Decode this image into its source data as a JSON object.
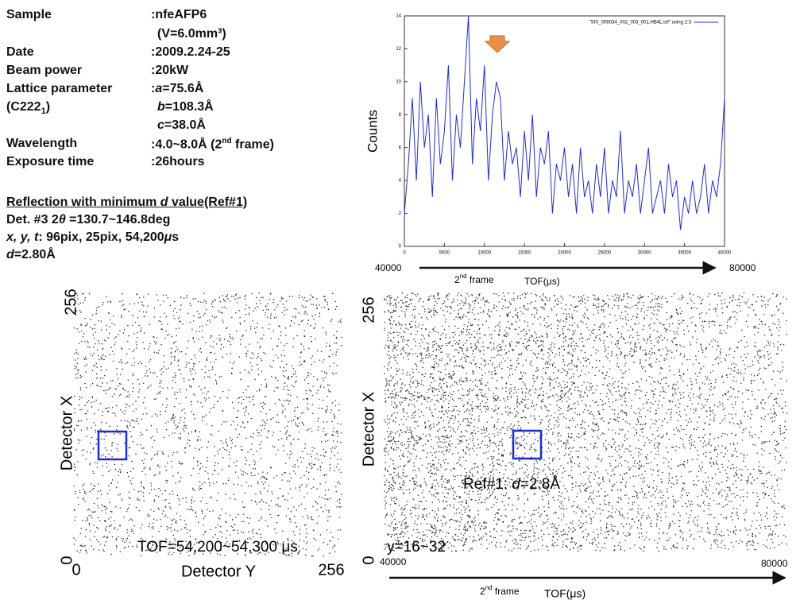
{
  "info": {
    "sample_label": "Sample",
    "sample": ":nfeAFP6",
    "volume": "(V=6.0mm³)",
    "date_label": "Date",
    "date": ":2009.2.24-25",
    "power_label": "Beam power",
    "power": ":20kW",
    "lattice_label": "Lattice parameter",
    "lattice_a_colon": ":",
    "lattice_a_sym": "a",
    "lattice_a": "=75.6Å",
    "space_group": "(C222",
    "space_group_sub": "1",
    "space_group_end": ")",
    "lattice_b_sym": "b",
    "lattice_b": "=108.3Å",
    "lattice_c_sym": "c",
    "lattice_c": "=38.0Å",
    "wavelength_label": "Wavelength",
    "wavelength": ":4.0~8.0Å (2",
    "wavelength_sup": "nd",
    "wavelength_end": " frame)",
    "exposure_label": "Exposure time",
    "exposure": ":26hours",
    "reflection_pre": "Reflection with minimum ",
    "reflection_sym": "d",
    "reflection_post": " value(Ref#1)",
    "det_pre": "Det. #3 2",
    "det_sym": "θ",
    "det_post": " =130.7~146.8deg",
    "xyt_sym": "x, y, t",
    "xyt": ": 96pix, 25pix, 54,200",
    "xyt_unit": "μ",
    "xyt_end": "s",
    "d_sym": "d",
    "d": "=2.80Å"
  },
  "chart_data": {
    "type": "line",
    "y_label": "Counts",
    "xlim": [
      0,
      40000
    ],
    "ylim": [
      0,
      14
    ],
    "xticks": [
      0,
      5000,
      10000,
      15000,
      20000,
      25000,
      30000,
      35000,
      40000
    ],
    "yticks": [
      0,
      2,
      4,
      6,
      8,
      10,
      12,
      14
    ],
    "legend": "top-right",
    "x": [
      0,
      500,
      1000,
      1500,
      2000,
      2500,
      3000,
      3500,
      4000,
      4500,
      5000,
      5500,
      6000,
      6500,
      7000,
      7500,
      8000,
      8500,
      9000,
      9500,
      10000,
      10500,
      11000,
      11500,
      12000,
      12500,
      13000,
      13500,
      14000,
      14500,
      15000,
      15500,
      16000,
      16500,
      17000,
      17500,
      18000,
      18500,
      19000,
      19500,
      20000,
      20500,
      21000,
      21500,
      22000,
      22500,
      23000,
      23500,
      24000,
      24500,
      25000,
      25500,
      26000,
      26500,
      27000,
      27500,
      28000,
      28500,
      29000,
      29500,
      30000,
      30500,
      31000,
      31500,
      32000,
      32500,
      33000,
      33500,
      34000,
      34500,
      35000,
      35500,
      36000,
      36500,
      37000,
      37500,
      38000,
      38500,
      39000,
      39500,
      40000
    ],
    "series": [
      {
        "name": "\"SIX_006034_002_003_001.HB4L.tof\" using 2:3",
        "color": "#1f2fd0",
        "values": [
          2,
          5,
          9,
          4,
          10,
          6,
          8,
          3,
          9,
          5,
          7,
          11,
          4,
          8,
          6,
          10,
          14,
          5,
          9,
          7,
          11,
          4,
          8,
          10,
          9,
          4,
          7,
          5,
          6,
          3,
          7,
          4,
          8,
          3,
          6,
          5,
          7,
          2,
          5,
          4,
          6,
          3,
          5,
          2,
          6,
          3,
          4,
          2,
          5,
          3,
          6,
          2,
          4,
          3,
          7,
          2,
          4,
          3,
          5,
          2,
          4,
          6,
          2,
          3,
          4,
          2,
          5,
          3,
          4,
          1,
          3,
          2,
          4,
          2,
          3,
          5,
          2,
          4,
          3,
          5,
          9
        ]
      }
    ],
    "axis_start": "40000",
    "axis_end": "80000",
    "frame_num": "2",
    "frame_sup": "nd",
    "frame_text": " frame",
    "tof_label": "TOF(μs)"
  },
  "images": {
    "left": {
      "x_top": "256",
      "x_label": "Detector X",
      "x_zero": "0",
      "y_zero": "0",
      "y_label": "Detector Y",
      "y_top": "256",
      "tof": "TOF=54,200~54,300 μs"
    },
    "right": {
      "x_top": "256",
      "x_label": "Detector X",
      "x_zero": "0",
      "axis_start": "40000",
      "axis_end": "80000",
      "y_range": "y=16~32",
      "ref_pre": "Ref#1: ",
      "ref_sym": "d",
      "ref_post": "=2.8Å",
      "frame_num": "2",
      "frame_sup": "nd",
      "frame_text": " frame",
      "tof_label": "TOF(μs)"
    }
  }
}
